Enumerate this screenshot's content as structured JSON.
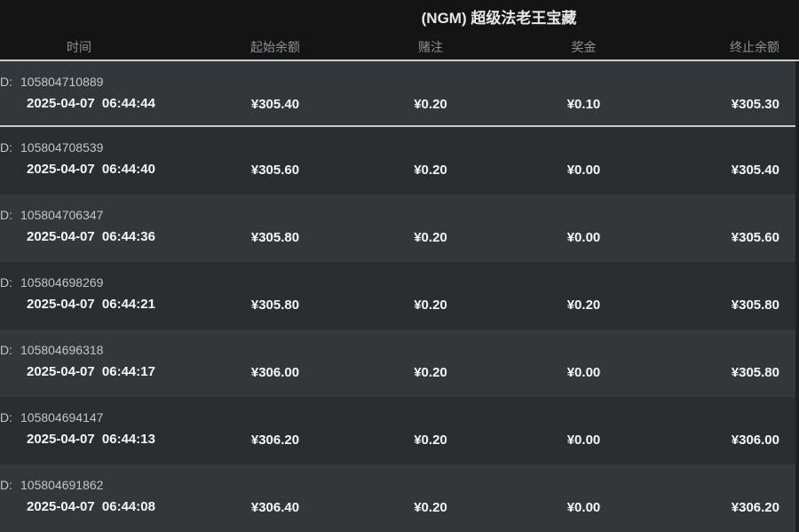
{
  "page": {
    "title": "(NGM) 超级法老王宝藏"
  },
  "colors": {
    "header_bg": "#141414",
    "page_bg": "#1f2022",
    "row_light": "#34373a",
    "row_dark": "#2b2d2f",
    "separator": "#cbccce",
    "title_color": "#e6e7e8",
    "col_header_color": "#8d9093",
    "id_color": "#c2c4c6",
    "value_color": "#f6f6f7"
  },
  "table": {
    "id_label": "D:",
    "columns": [
      {
        "key": "time",
        "label": "时间"
      },
      {
        "key": "start_balance",
        "label": "起始余额"
      },
      {
        "key": "bet",
        "label": "赌注"
      },
      {
        "key": "prize",
        "label": "奖金"
      },
      {
        "key": "end_balance",
        "label": "终止余额"
      }
    ],
    "rows": [
      {
        "id": "105804710889",
        "time": "2025-04-07 06:44:44",
        "start_balance": "¥305.40",
        "bet": "¥0.20",
        "prize": "¥0.10",
        "end_balance": "¥305.30"
      },
      {
        "id": "105804708539",
        "time": "2025-04-07 06:44:40",
        "start_balance": "¥305.60",
        "bet": "¥0.20",
        "prize": "¥0.00",
        "end_balance": "¥305.40"
      },
      {
        "id": "105804706347",
        "time": "2025-04-07 06:44:36",
        "start_balance": "¥305.80",
        "bet": "¥0.20",
        "prize": "¥0.00",
        "end_balance": "¥305.60"
      },
      {
        "id": "105804698269",
        "time": "2025-04-07 06:44:21",
        "start_balance": "¥305.80",
        "bet": "¥0.20",
        "prize": "¥0.20",
        "end_balance": "¥305.80"
      },
      {
        "id": "105804696318",
        "time": "2025-04-07 06:44:17",
        "start_balance": "¥306.00",
        "bet": "¥0.20",
        "prize": "¥0.00",
        "end_balance": "¥305.80"
      },
      {
        "id": "105804694147",
        "time": "2025-04-07 06:44:13",
        "start_balance": "¥306.20",
        "bet": "¥0.20",
        "prize": "¥0.00",
        "end_balance": "¥306.00"
      },
      {
        "id": "105804691862",
        "time": "2025-04-07 06:44:08",
        "start_balance": "¥306.40",
        "bet": "¥0.20",
        "prize": "¥0.00",
        "end_balance": "¥306.20"
      }
    ]
  }
}
